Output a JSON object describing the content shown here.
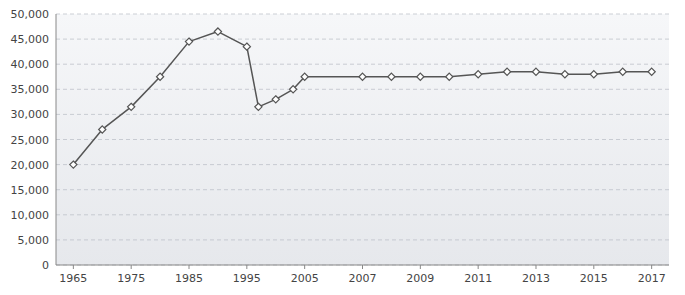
{
  "chart_data": {
    "type": "line",
    "x": [
      1965,
      1970,
      1975,
      1980,
      1985,
      1990,
      1995,
      1997,
      2000,
      2003,
      2005,
      2007,
      2008,
      2009,
      2010,
      2011,
      2012,
      2013,
      2014,
      2015,
      2016,
      2017
    ],
    "values": [
      20000,
      27000,
      31500,
      37500,
      44500,
      46500,
      43500,
      31500,
      33000,
      35000,
      37500,
      37500,
      37500,
      37500,
      37500,
      38000,
      38500,
      38500,
      38000,
      38000,
      38500,
      38500
    ],
    "color": "#555555",
    "marker": "diamond",
    "xlim": [
      1962,
      2017.6
    ],
    "xticks": [
      1965,
      1975,
      1985,
      1995,
      2005,
      2007,
      2009,
      2011,
      2013,
      2015,
      2017
    ],
    "ylim": [
      0,
      50000
    ],
    "yticks": [
      0,
      {
        "value": 5000,
        "label": "5,000"
      },
      {
        "value": 10000,
        "label": "10,000"
      },
      {
        "value": 15000,
        "label": "15,000"
      },
      {
        "value": 20000,
        "label": "20,000"
      },
      {
        "value": 25000,
        "label": "25,000"
      },
      {
        "value": 30000,
        "label": "30,000"
      },
      {
        "value": 35000,
        "label": "35,000"
      },
      {
        "value": 40000,
        "label": "40,000"
      },
      {
        "value": 45000,
        "label": "45,000"
      },
      {
        "value": 50000,
        "label": "50,000"
      }
    ],
    "grid": true
  }
}
